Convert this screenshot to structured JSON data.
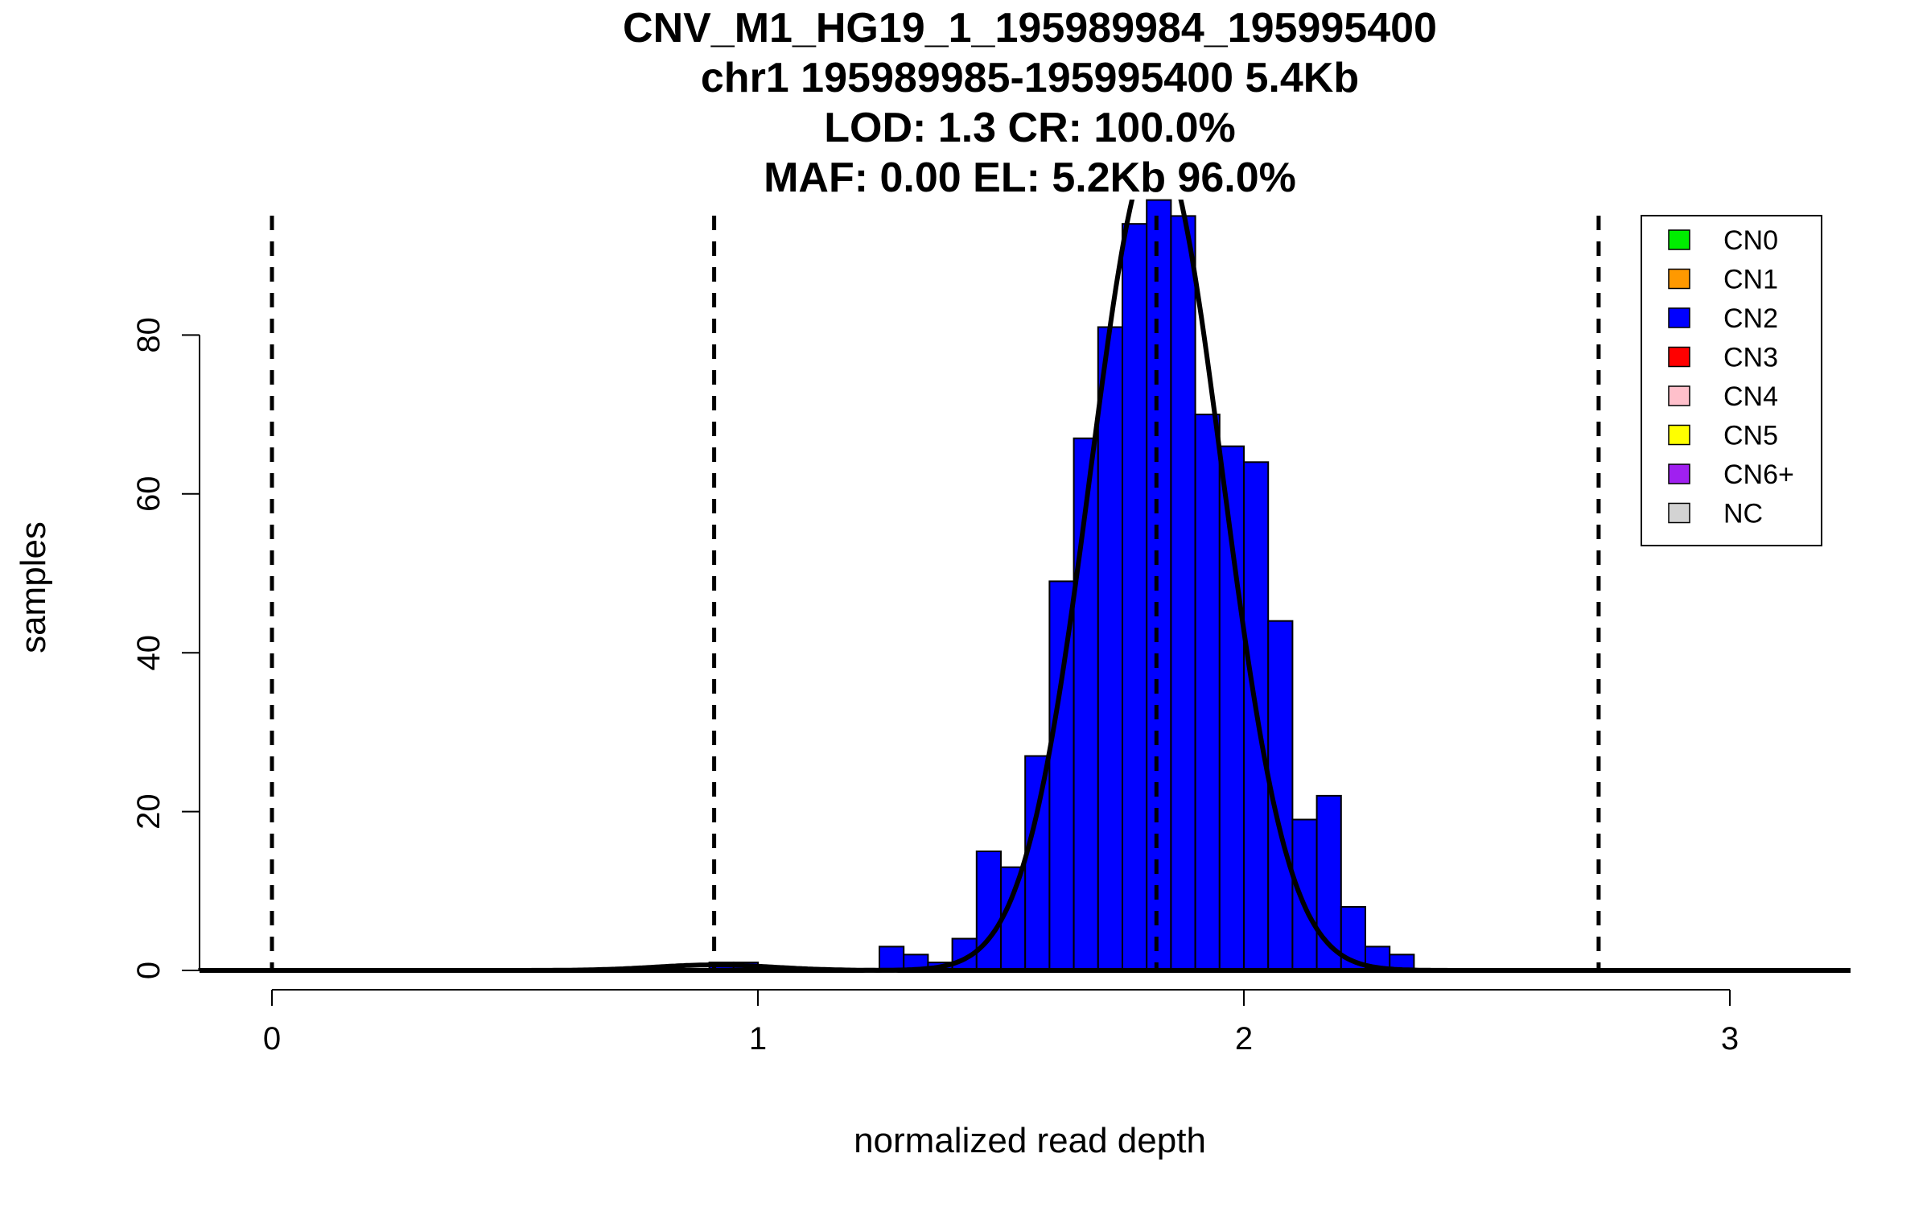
{
  "chart_data": {
    "type": "bar",
    "title_lines": [
      "CNV_M1_HG19_1_195989984_195995400",
      "chr1 195989985-195995400 5.4Kb",
      "LOD: 1.3 CR: 100.0%",
      "MAF: 0.00 EL: 5.2Kb 96.0%"
    ],
    "xlabel": "normalized read depth",
    "ylabel": "samples",
    "xlim": [
      -0.15,
      3.25
    ],
    "ylim": [
      0,
      97
    ],
    "x_ticks": [
      0,
      1,
      2,
      3
    ],
    "x_tick_labels": [
      "0",
      "1",
      "2",
      "3"
    ],
    "y_ticks": [
      0,
      20,
      40,
      60,
      80
    ],
    "y_tick_labels": [
      "0",
      "20",
      "40",
      "60",
      "80"
    ],
    "bin_width": 0.05,
    "bins": [
      {
        "x0": -0.15,
        "count": 0.2
      },
      {
        "x0": -0.1,
        "count": 0.2
      },
      {
        "x0": -0.05,
        "count": 0.2
      },
      {
        "x0": 0.0,
        "count": 0.2
      },
      {
        "x0": 0.05,
        "count": 0.2
      },
      {
        "x0": 0.1,
        "count": 0.2
      },
      {
        "x0": 0.15,
        "count": 0.2
      },
      {
        "x0": 0.9,
        "count": 1
      },
      {
        "x0": 0.95,
        "count": 1
      },
      {
        "x0": 1.25,
        "count": 3
      },
      {
        "x0": 1.3,
        "count": 2
      },
      {
        "x0": 1.35,
        "count": 1
      },
      {
        "x0": 1.4,
        "count": 4
      },
      {
        "x0": 1.45,
        "count": 15
      },
      {
        "x0": 1.5,
        "count": 13
      },
      {
        "x0": 1.55,
        "count": 27
      },
      {
        "x0": 1.6,
        "count": 49
      },
      {
        "x0": 1.65,
        "count": 67
      },
      {
        "x0": 1.7,
        "count": 81
      },
      {
        "x0": 1.75,
        "count": 94
      },
      {
        "x0": 1.8,
        "count": 97
      },
      {
        "x0": 1.85,
        "count": 95
      },
      {
        "x0": 1.9,
        "count": 70
      },
      {
        "x0": 1.95,
        "count": 66
      },
      {
        "x0": 2.0,
        "count": 64
      },
      {
        "x0": 2.05,
        "count": 44
      },
      {
        "x0": 2.1,
        "count": 19
      },
      {
        "x0": 2.15,
        "count": 22
      },
      {
        "x0": 2.2,
        "count": 8
      },
      {
        "x0": 2.25,
        "count": 3
      },
      {
        "x0": 2.3,
        "count": 2
      }
    ],
    "bar_color": "#0000ff",
    "dashed_lines_x": [
      0,
      0.91,
      1.82,
      2.73
    ],
    "fit_curves": [
      {
        "mean": 1.82,
        "sd": 0.135,
        "peak": 104
      },
      {
        "mean": 0.91,
        "sd": 0.12,
        "peak": 0.7
      }
    ],
    "legend": {
      "position": "top-right",
      "entries": [
        {
          "label": "CN0",
          "color": "#00ee00"
        },
        {
          "label": "CN1",
          "color": "#ff9900"
        },
        {
          "label": "CN2",
          "color": "#0000ff"
        },
        {
          "label": "CN3",
          "color": "#ff0000"
        },
        {
          "label": "CN4",
          "color": "#ffc0cb"
        },
        {
          "label": "CN5",
          "color": "#ffff00"
        },
        {
          "label": "CN6+",
          "color": "#a020f0"
        },
        {
          "label": "NC",
          "color": "#d3d3d3"
        }
      ]
    }
  }
}
